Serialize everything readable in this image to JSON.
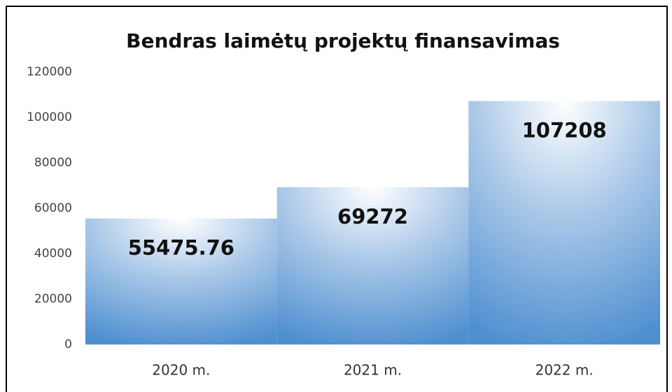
{
  "chart_data": {
    "type": "bar",
    "title": "Bendras laimėtų projektų finansavimas",
    "categories": [
      "2020 m.",
      "2021 m.",
      "2022 m."
    ],
    "values": [
      55475.76,
      69272,
      107208
    ],
    "color": "#5b9bd5",
    "ylim": [
      0,
      120000
    ],
    "yticks": [
      0,
      20000,
      40000,
      60000,
      80000,
      100000,
      120000
    ],
    "grid": false
  }
}
